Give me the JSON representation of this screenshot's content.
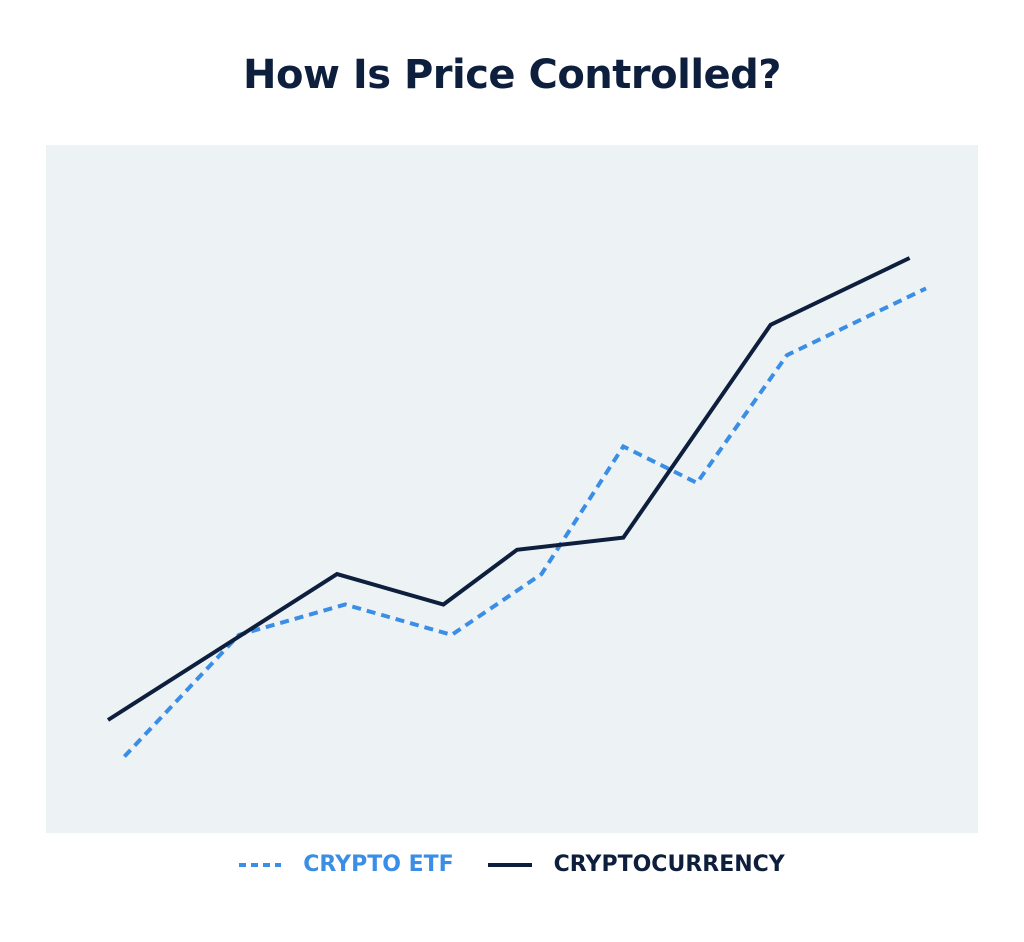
{
  "chart_data": {
    "type": "line",
    "title": "How Is Price Controlled?",
    "xlabel": "",
    "ylabel": "",
    "grid": false,
    "legend_position": "bottom-center",
    "xlim": [
      0,
      100
    ],
    "ylim": [
      0,
      100
    ],
    "series": [
      {
        "name": "CRYPTO ETF",
        "color": "#3a8ee6",
        "style": "dashed",
        "x": [
          2,
          16,
          29,
          42,
          53,
          63,
          72,
          83,
          100
        ],
        "y": [
          6,
          26,
          31,
          26,
          36,
          57,
          51,
          72,
          83
        ]
      },
      {
        "name": "CRYPTOCURRENCY",
        "color": "#0d1f3c",
        "style": "solid",
        "x": [
          0,
          28,
          41,
          50,
          63,
          81,
          98
        ],
        "y": [
          12,
          36,
          31,
          40,
          42,
          77,
          88
        ]
      }
    ]
  }
}
